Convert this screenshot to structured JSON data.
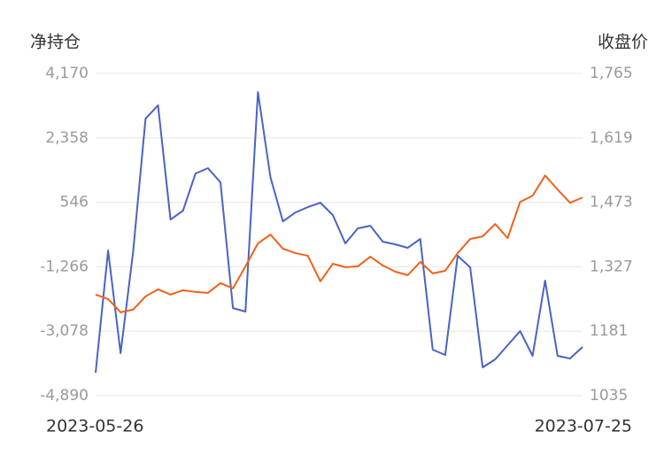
{
  "chart_data": {
    "type": "line",
    "ylabel": "净持仓",
    "y2label": "收盘价",
    "categories": [
      "2023-05-26",
      null,
      null,
      null,
      null,
      null,
      null,
      null,
      null,
      null,
      null,
      null,
      null,
      null,
      null,
      null,
      null,
      null,
      null,
      null,
      null,
      null,
      null,
      null,
      null,
      null,
      null,
      null,
      null,
      null,
      null,
      null,
      null,
      null,
      null,
      null,
      null,
      null,
      null,
      "2023-07-25"
    ],
    "series": [
      {
        "color": "#4a63c4",
        "values": [
          -4243,
          -808,
          -3695,
          -858,
          2901,
          3274,
          63,
          312,
          1357,
          1507,
          1109,
          -2426,
          -2525,
          3647,
          1258,
          13,
          262,
          412,
          536,
          188,
          -609,
          -186,
          -112,
          -559,
          -634,
          -733,
          -484,
          -3596,
          -3745,
          -957,
          -1281,
          -4093,
          -3869,
          -3471,
          -3073,
          -3770,
          -1654,
          -3770,
          -3845,
          -3521
        ]
      },
      {
        "color": "#f0611a",
        "axis": "y2",
        "values": [
          1264,
          1254,
          1224,
          1230,
          1260,
          1276,
          1264,
          1274,
          1270,
          1268,
          1290,
          1278,
          1328,
          1380,
          1400,
          1368,
          1358,
          1352,
          1294,
          1334,
          1326,
          1328,
          1350,
          1330,
          1316,
          1308,
          1338,
          1312,
          1318,
          1358,
          1390,
          1396,
          1424,
          1392,
          1474,
          1488,
          1534,
          1502,
          1472,
          1484
        ]
      }
    ],
    "ylim": [
      -4890,
      4170
    ],
    "yticks": [
      {
        "value": -4890,
        "label": "-4,890"
      },
      {
        "value": -3078,
        "label": "-3,078"
      },
      {
        "value": -1266,
        "label": "-1,266"
      },
      546,
      {
        "value": 2358,
        "label": "2,358"
      },
      {
        "value": 4170,
        "label": "4,170"
      }
    ],
    "y2lim": [
      1035,
      1765
    ],
    "y2ticks": [
      1035,
      1181,
      {
        "value": 1327,
        "label": "1,327"
      },
      {
        "value": 1473,
        "label": "1,473"
      },
      {
        "value": 1619,
        "label": "1,619"
      },
      {
        "value": 1765,
        "label": "1,765"
      }
    ],
    "grid": true
  }
}
